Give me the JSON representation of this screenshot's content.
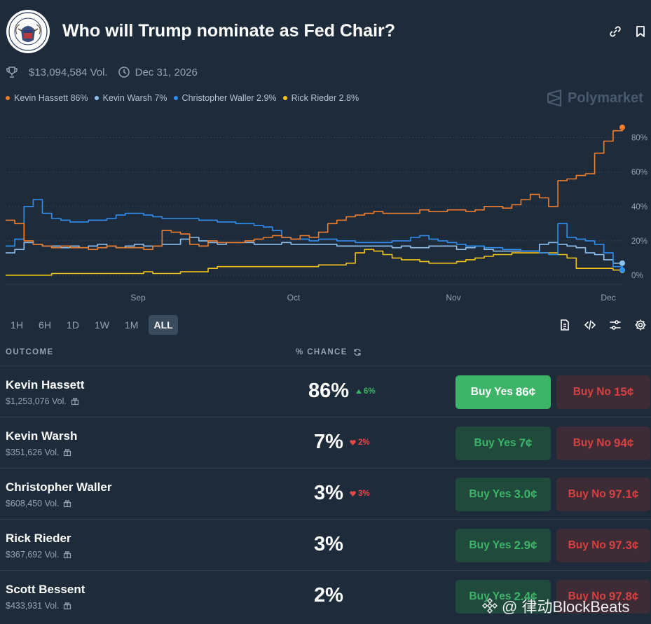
{
  "header": {
    "title": "Who will Trump nominate as Fed Chair?",
    "volume": "$13,094,584 Vol.",
    "end_date": "Dec 31, 2026",
    "brand": "Polymarket"
  },
  "legend": [
    {
      "label": "Kevin Hassett 86%",
      "color": "#f07e2d"
    },
    {
      "label": "Kevin Warsh 7%",
      "color": "#8fc1f1"
    },
    {
      "label": "Christopher Waller 2.9%",
      "color": "#2f8ff2"
    },
    {
      "label": "Rick Rieder 2.8%",
      "color": "#f2c318"
    }
  ],
  "time_ranges": [
    {
      "label": "1H",
      "active": false
    },
    {
      "label": "6H",
      "active": false
    },
    {
      "label": "1D",
      "active": false
    },
    {
      "label": "1W",
      "active": false
    },
    {
      "label": "1M",
      "active": false
    },
    {
      "label": "ALL",
      "active": true
    }
  ],
  "table": {
    "col_outcome": "OUTCOME",
    "col_chance": "% CHANCE",
    "rows": [
      {
        "name": "Kevin Hassett",
        "volume": "$1,253,076 Vol.",
        "chance": "86%",
        "delta": "6%",
        "delta_dir": "up",
        "yes_label": "Buy Yes",
        "yes_price": "86¢",
        "no_label": "Buy No",
        "no_price": "15¢",
        "highlight": true
      },
      {
        "name": "Kevin Warsh",
        "volume": "$351,626 Vol.",
        "chance": "7%",
        "delta": "2%",
        "delta_dir": "down",
        "yes_label": "Buy Yes",
        "yes_price": "7¢",
        "no_label": "Buy No",
        "no_price": "94¢",
        "highlight": false
      },
      {
        "name": "Christopher Waller",
        "volume": "$608,450 Vol.",
        "chance": "3%",
        "delta": "3%",
        "delta_dir": "down",
        "yes_label": "Buy Yes",
        "yes_price": "3.0¢",
        "no_label": "Buy No",
        "no_price": "97.1¢",
        "highlight": false
      },
      {
        "name": "Rick Rieder",
        "volume": "$367,692 Vol.",
        "chance": "3%",
        "delta": "",
        "delta_dir": "",
        "yes_label": "Buy Yes",
        "yes_price": "2.9¢",
        "no_label": "Buy No",
        "no_price": "97.3¢",
        "highlight": false
      },
      {
        "name": "Scott Bessent",
        "volume": "$433,931 Vol.",
        "chance": "2%",
        "delta": "",
        "delta_dir": "",
        "yes_label": "Buy Yes",
        "yes_price": "2.4¢",
        "no_label": "Buy No",
        "no_price": "97.8¢",
        "highlight": false
      }
    ]
  },
  "watermark": "@ 律动BlockBeats",
  "chart_data": {
    "type": "line",
    "x_ticks": [
      "Sep",
      "Oct",
      "Nov",
      "Dec"
    ],
    "y_ticks": [
      "80%",
      "60%",
      "40%",
      "20%",
      "0%"
    ],
    "ylim": [
      0,
      90
    ],
    "grid": "horizontal dotted",
    "y_axis_position": "right",
    "series": [
      {
        "name": "Kevin Hassett",
        "color": "#f07e2d",
        "values": [
          32,
          30,
          20,
          18,
          17,
          16,
          17,
          16,
          16,
          15,
          16,
          17,
          16,
          16,
          16,
          15,
          17,
          26,
          25,
          24,
          18,
          17,
          20,
          19,
          19,
          19,
          20,
          21,
          22,
          23,
          22,
          21,
          23,
          22,
          25,
          30,
          32,
          34,
          35,
          36,
          37,
          36,
          36,
          36,
          36,
          38,
          37,
          37,
          38,
          38,
          37,
          38,
          40,
          40,
          39,
          41,
          44,
          47,
          45,
          40,
          55,
          56,
          58,
          59,
          71,
          78,
          84,
          86
        ]
      },
      {
        "name": "Kevin Warsh",
        "color": "#8fc1f1",
        "values": [
          13,
          15,
          19,
          18,
          17,
          17,
          16,
          17,
          16,
          17,
          18,
          17,
          16,
          17,
          18,
          17,
          17,
          18,
          18,
          21,
          22,
          20,
          19,
          18,
          19,
          19,
          19,
          18,
          18,
          18,
          19,
          18,
          18,
          18,
          18,
          18,
          17,
          17,
          17,
          17,
          17,
          17,
          16,
          17,
          16,
          16,
          17,
          17,
          17,
          15,
          16,
          17,
          15,
          14,
          14,
          14,
          14,
          14,
          18,
          19,
          18,
          17,
          16,
          13,
          12,
          9,
          7,
          7
        ]
      },
      {
        "name": "Christopher Waller",
        "color": "#2f8ff2",
        "values": [
          17,
          21,
          40,
          44,
          36,
          33,
          32,
          31,
          31,
          32,
          32,
          33,
          35,
          36,
          36,
          35,
          34,
          33,
          33,
          33,
          33,
          32,
          32,
          31,
          31,
          30,
          30,
          29,
          28,
          26,
          22,
          21,
          21,
          20,
          21,
          21,
          20,
          20,
          19,
          19,
          19,
          19,
          20,
          20,
          22,
          23,
          21,
          20,
          19,
          18,
          17,
          17,
          16,
          16,
          15,
          15,
          14,
          14,
          13,
          12,
          30,
          22,
          21,
          20,
          18,
          13,
          5,
          3
        ]
      },
      {
        "name": "Rick Rieder",
        "color": "#f2c318",
        "values": [
          0,
          0,
          0,
          0,
          0,
          1,
          1,
          1,
          1,
          1,
          1,
          1,
          1,
          1,
          1,
          2,
          1,
          1,
          1,
          2,
          2,
          2,
          4,
          5,
          5,
          5,
          5,
          5,
          5,
          5,
          5,
          5,
          5,
          5,
          6,
          6,
          6,
          7,
          13,
          15,
          14,
          12,
          10,
          9,
          9,
          8,
          7,
          7,
          7,
          8,
          9,
          10,
          11,
          12,
          12,
          13,
          13,
          13,
          13,
          13,
          12,
          10,
          4,
          4,
          4,
          4,
          3,
          2.8
        ]
      }
    ]
  }
}
